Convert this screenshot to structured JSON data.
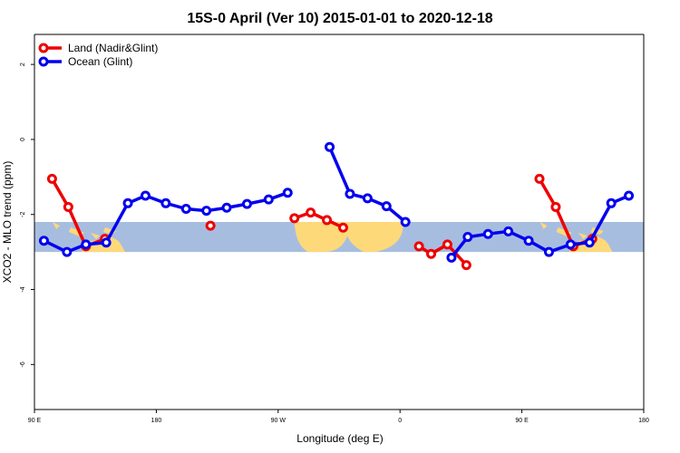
{
  "chart_data": {
    "type": "line",
    "title": "15S-0 April (Ver 10)   2015-01-01 to 2020-12-18",
    "xlabel": "Longitude (deg E)",
    "ylabel": "XCO2 - MLO trend (ppm)",
    "xlim": [
      90,
      540
    ],
    "ylim": [
      -7.2,
      2.8
    ],
    "x_ticks": [
      {
        "value": 90,
        "label": "90 E"
      },
      {
        "value": 180,
        "label": "180"
      },
      {
        "value": 270,
        "label": "90 W"
      },
      {
        "value": 360,
        "label": "0"
      },
      {
        "value": 450,
        "label": "90 E"
      },
      {
        "value": 540,
        "label": "180"
      }
    ],
    "y_ticks": [
      {
        "value": 2,
        "label": "2"
      },
      {
        "value": 0,
        "label": "0"
      },
      {
        "value": -2,
        "label": "-2"
      },
      {
        "value": -4,
        "label": "-4"
      },
      {
        "value": -6,
        "label": "-6"
      }
    ],
    "latitude_band": {
      "y_range": [
        -3.0,
        -2.2
      ],
      "color": "#a7bde0",
      "land_color": "#fdd97a"
    },
    "legend": {
      "position": "top-left"
    },
    "series": [
      {
        "name": "Land (Nadir&Glint)",
        "color": "#ee0000",
        "segments": [
          [
            [
              103,
              -1.05
            ],
            [
              115,
              -1.8
            ],
            [
              128,
              -2.85
            ],
            [
              142,
              -2.65
            ]
          ],
          [
            [
              220,
              -2.3
            ]
          ],
          [
            [
              282,
              -2.1
            ],
            [
              294,
              -1.95
            ],
            [
              306,
              -2.15
            ],
            [
              318,
              -2.35
            ]
          ],
          [
            [
              374,
              -2.85
            ],
            [
              383,
              -3.05
            ],
            [
              395,
              -2.8
            ],
            [
              409,
              -3.35
            ]
          ],
          [
            [
              463,
              -1.05
            ],
            [
              475,
              -1.8
            ],
            [
              488,
              -2.85
            ],
            [
              502,
              -2.65
            ]
          ]
        ]
      },
      {
        "name": "Ocean (Glint)",
        "color": "#0000ee",
        "segments": [
          [
            [
              97,
              -2.7
            ],
            [
              114,
              -3.0
            ],
            [
              128,
              -2.8
            ],
            [
              143,
              -2.75
            ],
            [
              159,
              -1.7
            ],
            [
              172,
              -1.5
            ],
            [
              187,
              -1.7
            ],
            [
              202,
              -1.85
            ],
            [
              217,
              -1.9
            ],
            [
              232,
              -1.82
            ],
            [
              247,
              -1.72
            ],
            [
              263,
              -1.6
            ],
            [
              277,
              -1.42
            ]
          ],
          [
            [
              308,
              -0.2
            ],
            [
              323,
              -1.45
            ],
            [
              336,
              -1.57
            ],
            [
              350,
              -1.78
            ],
            [
              364,
              -2.2
            ]
          ],
          [
            [
              398,
              -3.15
            ],
            [
              410,
              -2.6
            ],
            [
              425,
              -2.52
            ],
            [
              440,
              -2.45
            ],
            [
              455,
              -2.7
            ],
            [
              470,
              -3.0
            ],
            [
              486,
              -2.8
            ],
            [
              500,
              -2.75
            ],
            [
              516,
              -1.7
            ],
            [
              529,
              -1.5
            ]
          ]
        ]
      }
    ]
  }
}
